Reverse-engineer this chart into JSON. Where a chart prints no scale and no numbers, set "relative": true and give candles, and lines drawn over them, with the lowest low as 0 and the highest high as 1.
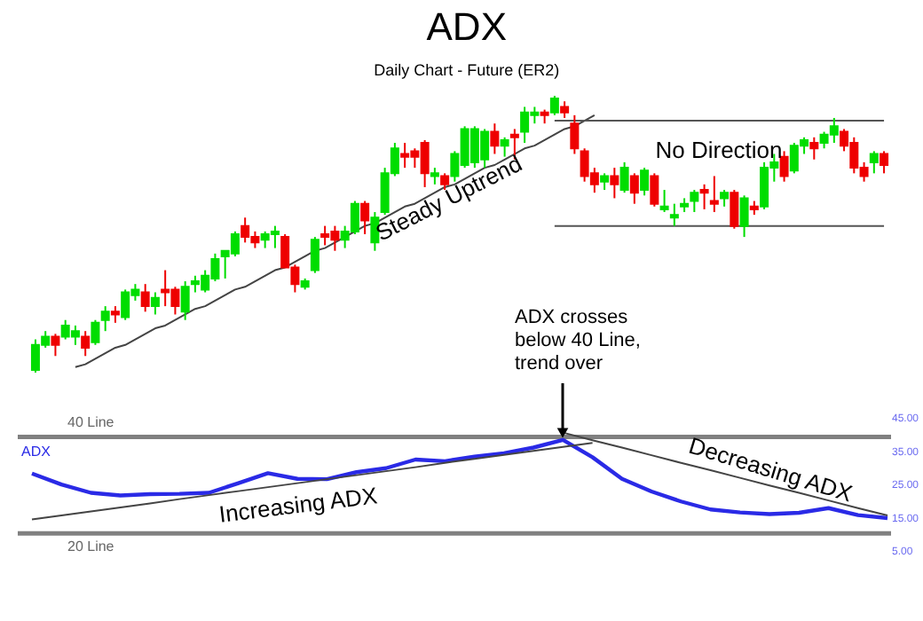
{
  "chart_data": [
    {
      "type": "candlestick",
      "title": "ADX",
      "subtitle": "Daily Chart - Future (ER2)",
      "relative": true,
      "tick_labels": false,
      "categories": [
        null,
        null,
        null,
        null,
        null,
        null,
        null,
        null,
        null,
        null,
        null,
        null,
        null,
        null,
        null,
        null,
        null,
        null,
        null,
        null,
        null,
        null,
        null,
        null,
        null,
        null,
        null,
        null,
        null,
        null,
        null,
        null,
        null,
        null,
        null,
        null,
        null,
        null,
        null,
        null,
        null,
        null,
        null,
        null,
        null,
        null,
        null,
        null,
        null,
        null,
        null,
        null,
        null,
        null,
        null,
        null,
        null,
        null,
        null,
        null,
        null,
        null,
        null,
        null,
        null,
        null,
        null,
        null,
        null,
        null,
        null,
        null,
        null,
        null,
        null,
        null,
        null,
        null,
        null,
        null,
        null,
        null,
        null,
        null,
        null,
        null
      ],
      "ohlc": [
        [
          0.01,
          0.12,
          0,
          0.1
        ],
        [
          0.1,
          0.15,
          0.09,
          0.13
        ],
        [
          0.13,
          0.14,
          0.06,
          0.1
        ],
        [
          0.13,
          0.19,
          0.12,
          0.17
        ],
        [
          0.13,
          0.17,
          0.1,
          0.15
        ],
        [
          0.13,
          0.15,
          0.06,
          0.09
        ],
        [
          0.11,
          0.19,
          0.1,
          0.18
        ],
        [
          0.19,
          0.24,
          0.15,
          0.22
        ],
        [
          0.22,
          0.24,
          0.18,
          0.21
        ],
        [
          0.2,
          0.3,
          0.19,
          0.29
        ],
        [
          0.28,
          0.32,
          0.26,
          0.3
        ],
        [
          0.29,
          0.32,
          0.22,
          0.24
        ],
        [
          0.24,
          0.29,
          0.21,
          0.27
        ],
        [
          0.3,
          0.37,
          0.24,
          0.29
        ],
        [
          0.3,
          0.31,
          0.21,
          0.24
        ],
        [
          0.22,
          0.33,
          0.19,
          0.31
        ],
        [
          0.32,
          0.35,
          0.29,
          0.33
        ],
        [
          0.3,
          0.37,
          0.29,
          0.35
        ],
        [
          0.34,
          0.43,
          0.33,
          0.41
        ],
        [
          0.42,
          0.44,
          0.34,
          0.44
        ],
        [
          0.43,
          0.51,
          0.42,
          0.5
        ],
        [
          0.53,
          0.56,
          0.47,
          0.49
        ],
        [
          0.49,
          0.51,
          0.45,
          0.47
        ],
        [
          0.48,
          0.51,
          0.45,
          0.5
        ],
        [
          0.5,
          0.53,
          0.45,
          0.51
        ],
        [
          0.49,
          0.5,
          0.38,
          0.38
        ],
        [
          0.38,
          0.39,
          0.29,
          0.32
        ],
        [
          0.31,
          0.34,
          0.3,
          0.33
        ],
        [
          0.37,
          0.49,
          0.36,
          0.48
        ],
        [
          0.5,
          0.53,
          0.46,
          0.49
        ],
        [
          0.51,
          0.53,
          0.44,
          0.48
        ],
        [
          0.48,
          0.53,
          0.45,
          0.51
        ],
        [
          0.51,
          0.62,
          0.5,
          0.61
        ],
        [
          0.61,
          0.62,
          0.5,
          0.55
        ],
        [
          0.47,
          0.58,
          0.44,
          0.56
        ],
        [
          0.58,
          0.74,
          0.57,
          0.72
        ],
        [
          0.72,
          0.83,
          0.71,
          0.81
        ],
        [
          0.79,
          0.83,
          0.74,
          0.78
        ],
        [
          0.8,
          0.81,
          0.74,
          0.78
        ],
        [
          0.83,
          0.84,
          0.67,
          0.72
        ],
        [
          0.71,
          0.74,
          0.68,
          0.72
        ],
        [
          0.71,
          0.72,
          0.66,
          0.68
        ],
        [
          0.71,
          0.8,
          0.69,
          0.79
        ],
        [
          0.75,
          0.89,
          0.74,
          0.88
        ],
        [
          0.76,
          0.89,
          0.74,
          0.88
        ],
        [
          0.77,
          0.88,
          0.74,
          0.87
        ],
        [
          0.87,
          0.9,
          0.79,
          0.82
        ],
        [
          0.82,
          0.85,
          0.78,
          0.84
        ],
        [
          0.86,
          0.88,
          0.77,
          0.85
        ],
        [
          0.87,
          0.96,
          0.83,
          0.94
        ],
        [
          0.93,
          0.96,
          0.9,
          0.94
        ],
        [
          0.94,
          0.95,
          0.9,
          0.93
        ],
        [
          0.94,
          1,
          0.93,
          0.99
        ],
        [
          0.96,
          0.98,
          0.92,
          0.94
        ],
        [
          0.9,
          0.93,
          0.79,
          0.81
        ],
        [
          0.8,
          0.81,
          0.69,
          0.71
        ],
        [
          0.72,
          0.74,
          0.65,
          0.68
        ],
        [
          0.69,
          0.72,
          0.66,
          0.71
        ],
        [
          0.71,
          0.74,
          0.63,
          0.68
        ],
        [
          0.66,
          0.76,
          0.65,
          0.74
        ],
        [
          0.71,
          0.72,
          0.61,
          0.65
        ],
        [
          0.66,
          0.74,
          0.64,
          0.73
        ],
        [
          0.71,
          0.72,
          0.6,
          0.61
        ],
        [
          0.59,
          0.66,
          0.58,
          0.6
        ],
        [
          0.56,
          0.61,
          0.53,
          0.57
        ],
        [
          0.6,
          0.63,
          0.58,
          0.61
        ],
        [
          0.62,
          0.66,
          0.58,
          0.65
        ],
        [
          0.66,
          0.68,
          0.59,
          0.65
        ],
        [
          0.62,
          0.71,
          0.58,
          0.61
        ],
        [
          0.63,
          0.66,
          0.6,
          0.65
        ],
        [
          0.65,
          0.66,
          0.52,
          0.53
        ],
        [
          0.53,
          0.64,
          0.49,
          0.63
        ],
        [
          0.6,
          0.62,
          0.57,
          0.59
        ],
        [
          0.6,
          0.76,
          0.59,
          0.74
        ],
        [
          0.74,
          0.79,
          0.69,
          0.76
        ],
        [
          0.78,
          0.8,
          0.69,
          0.71
        ],
        [
          0.73,
          0.83,
          0.72,
          0.82
        ],
        [
          0.82,
          0.85,
          0.79,
          0.84
        ],
        [
          0.83,
          0.85,
          0.77,
          0.81
        ],
        [
          0.83,
          0.87,
          0.81,
          0.86
        ],
        [
          0.86,
          0.92,
          0.83,
          0.89
        ],
        [
          0.87,
          0.88,
          0.8,
          0.82
        ],
        [
          0.83,
          0.85,
          0.72,
          0.74
        ],
        [
          0.74,
          0.76,
          0.69,
          0.71
        ],
        [
          0.76,
          0.8,
          0.72,
          0.79
        ],
        [
          0.79,
          0.8,
          0.72,
          0.75
        ]
      ],
      "colors": [
        "#00dd00",
        "#00dd00",
        "#ee0000",
        "#00dd00",
        "#00dd00",
        "#ee0000",
        "#00dd00",
        "#00dd00",
        "#ee0000",
        "#00dd00",
        "#00dd00",
        "#ee0000",
        "#00dd00",
        "#ee0000",
        "#ee0000",
        "#00dd00",
        "#00dd00",
        "#00dd00",
        "#00dd00",
        "#00dd00",
        "#00dd00",
        "#ee0000",
        "#ee0000",
        "#00dd00",
        "#00dd00",
        "#ee0000",
        "#ee0000",
        "#00dd00",
        "#00dd00",
        "#ee0000",
        "#ee0000",
        "#00dd00",
        "#00dd00",
        "#ee0000",
        "#00dd00",
        "#00dd00",
        "#00dd00",
        "#ee0000",
        "#ee0000",
        "#ee0000",
        "#00dd00",
        "#ee0000",
        "#00dd00",
        "#00dd00",
        "#00dd00",
        "#00dd00",
        "#ee0000",
        "#00dd00",
        "#ee0000",
        "#00dd00",
        "#00dd00",
        "#ee0000",
        "#00dd00",
        "#ee0000",
        "#ee0000",
        "#ee0000",
        "#ee0000",
        "#00dd00",
        "#ee0000",
        "#00dd00",
        "#ee0000",
        "#00dd00",
        "#ee0000",
        "#00dd00",
        "#00dd00",
        "#00dd00",
        "#00dd00",
        "#ee0000",
        "#ee0000",
        "#00dd00",
        "#ee0000",
        "#00dd00",
        "#ee0000",
        "#00dd00",
        "#00dd00",
        "#ee0000",
        "#00dd00",
        "#00dd00",
        "#ee0000",
        "#00dd00",
        "#00dd00",
        "#ee0000",
        "#ee0000",
        "#ee0000",
        "#00dd00",
        "#ee0000"
      ],
      "series": [
        {
          "type": "line",
          "color": "#444444",
          "values": [
            null,
            null,
            null,
            null,
            0.02,
            0.03,
            0.05,
            0.07,
            0.09,
            0.1,
            0.12,
            0.14,
            0.16,
            0.17,
            0.19,
            0.21,
            0.23,
            0.24,
            0.26,
            0.28,
            0.3,
            0.31,
            0.33,
            0.35,
            0.37,
            0.38,
            0.4,
            0.42,
            0.44,
            0.45,
            0.47,
            0.49,
            0.51,
            0.53,
            0.54,
            0.56,
            0.58,
            0.6,
            0.61,
            0.63,
            0.65,
            0.67,
            0.68,
            0.7,
            0.72,
            0.74,
            0.75,
            0.77,
            0.79,
            0.81,
            0.82,
            0.84,
            0.86,
            0.88,
            0.89,
            0.91,
            0.93,
            null,
            null,
            null,
            null,
            null,
            null,
            null,
            null,
            null,
            null,
            null,
            null,
            null,
            null,
            null,
            null,
            null,
            null,
            null,
            null,
            null,
            null,
            null,
            null,
            null,
            null,
            null,
            null,
            null
          ]
        },
        {
          "type": "line",
          "color": "#555555",
          "values": [
            null,
            null,
            null,
            null,
            null,
            null,
            null,
            null,
            null,
            null,
            null,
            null,
            null,
            null,
            null,
            null,
            null,
            null,
            null,
            null,
            null,
            null,
            null,
            null,
            null,
            null,
            null,
            null,
            null,
            null,
            null,
            null,
            null,
            null,
            null,
            null,
            null,
            null,
            null,
            null,
            null,
            null,
            null,
            null,
            null,
            null,
            null,
            null,
            null,
            null,
            null,
            null,
            0.91,
            0.91,
            0.91,
            0.91,
            0.91,
            0.91,
            0.91,
            0.91,
            0.91,
            0.91,
            0.91,
            0.91,
            0.91,
            0.91,
            0.91,
            0.91,
            0.91,
            0.91,
            0.91,
            0.91,
            0.91,
            0.91,
            0.91,
            0.91,
            0.91,
            0.91,
            0.91,
            0.91,
            0.91,
            0.91,
            0.91,
            0.91,
            0.91,
            0.91
          ]
        },
        {
          "type": "line",
          "color": "#555555",
          "values": [
            null,
            null,
            null,
            null,
            null,
            null,
            null,
            null,
            null,
            null,
            null,
            null,
            null,
            null,
            null,
            null,
            null,
            null,
            null,
            null,
            null,
            null,
            null,
            null,
            null,
            null,
            null,
            null,
            null,
            null,
            null,
            null,
            null,
            null,
            null,
            null,
            null,
            null,
            null,
            null,
            null,
            null,
            null,
            null,
            null,
            null,
            null,
            null,
            null,
            null,
            null,
            null,
            0.53,
            0.53,
            0.53,
            0.53,
            0.53,
            0.53,
            0.53,
            0.53,
            0.53,
            0.53,
            0.53,
            0.53,
            0.53,
            0.53,
            0.53,
            0.53,
            0.53,
            0.53,
            0.53,
            0.53,
            0.53,
            0.53,
            0.53,
            0.53,
            0.53,
            0.53,
            0.53,
            0.53,
            0.53,
            0.53,
            0.53,
            0.53,
            0.53,
            0.53
          ]
        }
      ],
      "annotations": [
        "Steady Uptrend",
        "No Direction"
      ]
    },
    {
      "type": "line",
      "tick_labels": "y",
      "ylim": [
        5,
        45
      ],
      "categories": [
        null,
        null,
        null,
        null,
        null,
        null,
        null,
        null,
        null,
        null,
        null,
        null,
        null,
        null,
        null,
        null,
        null,
        null,
        null,
        null,
        null,
        null,
        null,
        null,
        null,
        null,
        null,
        null,
        null,
        null
      ],
      "yticks": [
        {
          "value": 5,
          "label": "5.00"
        },
        {
          "value": 15,
          "label": "15.00"
        },
        {
          "value": 25,
          "label": "25.00"
        },
        {
          "value": 35,
          "label": "35.00"
        },
        {
          "value": 45,
          "label": "45.00"
        }
      ],
      "series": [
        {
          "name": "ADX",
          "color": "#2a2ae6",
          "values": [
            28,
            24.7,
            22.2,
            21.4,
            21.8,
            21.9,
            22.2,
            25.1,
            28.1,
            26.4,
            26.3,
            28.4,
            29.6,
            32.2,
            31.7,
            33.1,
            34.1,
            35.8,
            38.1,
            32.9,
            26.4,
            22.6,
            19.6,
            17.2,
            16.3,
            15.8,
            16.2,
            17.6,
            15.5,
            14.6
          ]
        },
        {
          "type": "line",
          "color": "#444444",
          "values": [
            14.2,
            15.4,
            16.6,
            17.8,
            19.0,
            20.3,
            21.5,
            22.7,
            23.9,
            25.1,
            26.3,
            27.5,
            28.7,
            29.9,
            31.2,
            32.4,
            33.6,
            34.8,
            36.0,
            37.2,
            null,
            null,
            null,
            null,
            null,
            null,
            null,
            null,
            null,
            null
          ]
        },
        {
          "type": "line",
          "color": "#444444",
          "values": [
            null,
            null,
            null,
            null,
            null,
            null,
            null,
            null,
            null,
            null,
            null,
            null,
            null,
            null,
            null,
            null,
            null,
            null,
            40.3,
            38.0,
            35.8,
            33.5,
            31.2,
            29.0,
            26.7,
            24.4,
            22.2,
            19.9,
            17.6,
            15.4
          ]
        }
      ],
      "ref_lines": [
        {
          "axis": "y",
          "value": 39,
          "label": "40 Line",
          "color": "#808080"
        },
        {
          "axis": "y",
          "value": 10,
          "label": "20 Line",
          "color": "#808080"
        }
      ],
      "annotations": [
        "ADX crosses below 40 Line, trend over",
        "Increasing ADX",
        "Decreasing ADX"
      ]
    }
  ]
}
